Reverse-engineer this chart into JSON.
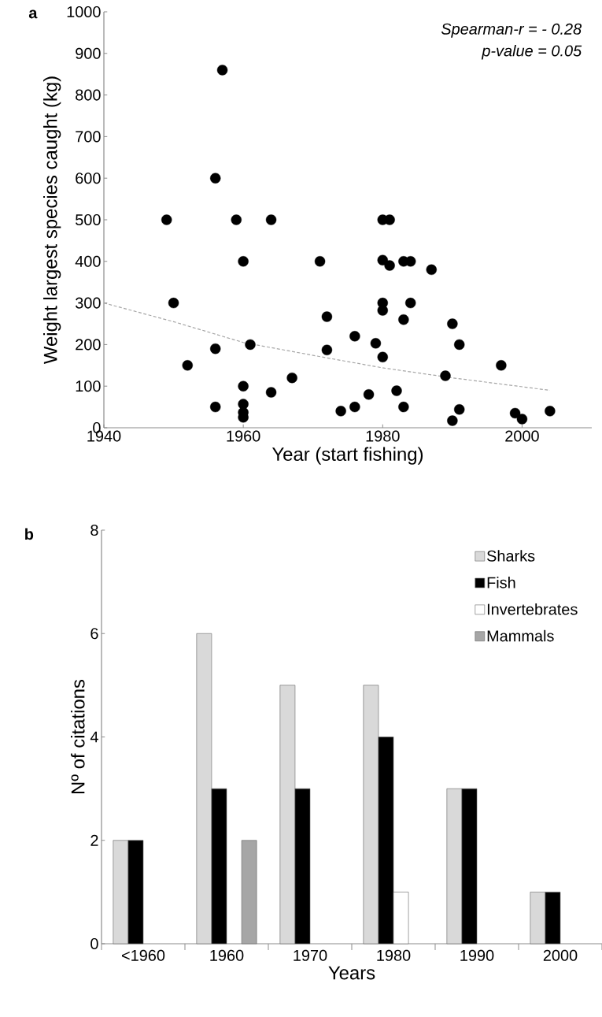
{
  "chart_data": [
    {
      "type": "scatter",
      "title": "a",
      "xlabel": "Year (start fishing)",
      "ylabel": "Weight largest species caught (kg)",
      "annotations": [
        "Spearman-r = - 0.28",
        "p-value = 0.05"
      ],
      "xlim": [
        1940,
        2010
      ],
      "xticks": [
        1940,
        1960,
        1980,
        2000
      ],
      "ylim": [
        0,
        1000
      ],
      "yticks": [
        0,
        100,
        200,
        300,
        400,
        500,
        600,
        700,
        800,
        900,
        1000
      ],
      "grid": false,
      "series": [
        {
          "type": "scatter",
          "color": "#000000",
          "marker": "circle",
          "x": [
            1949,
            1950,
            1952,
            1956,
            1956,
            1956,
            1957,
            1959,
            1960,
            1960,
            1960,
            1960,
            1960,
            1961,
            1964,
            1964,
            1967,
            1971,
            1972,
            1972,
            1974,
            1976,
            1976,
            1978,
            1979,
            1980,
            1980,
            1980,
            1980,
            1980,
            1981,
            1981,
            1982,
            1983,
            1983,
            1983,
            1984,
            1984,
            1987,
            1989,
            1990,
            1990,
            1991,
            1991,
            1997,
            1999,
            2000,
            2004
          ],
          "values": [
            500,
            300,
            150,
            600,
            190,
            50,
            860,
            500,
            400,
            100,
            57,
            37,
            25,
            200,
            500,
            85,
            120,
            400,
            267,
            187,
            40,
            220,
            50,
            80,
            203,
            500,
            403,
            300,
            282,
            170,
            500,
            390,
            89,
            400,
            260,
            50,
            400,
            300,
            380,
            125,
            250,
            17,
            200,
            44,
            150,
            35,
            21,
            40
          ]
        },
        {
          "type": "line",
          "color": "#a6a6a6",
          "line_style": "dashed",
          "marker": "none",
          "x": [
            1940,
            1950,
            1960,
            1972,
            1980,
            1990,
            2004
          ],
          "values": [
            300,
            255,
            205,
            168,
            144,
            120,
            90
          ]
        }
      ]
    },
    {
      "type": "bar",
      "title": "b",
      "xlabel": "Years",
      "ylabel": "Nº of  citations",
      "categories": [
        "<1960",
        "1960",
        "1970",
        "1980",
        "1990",
        "2000"
      ],
      "ylim": [
        0,
        8
      ],
      "yticks": [
        0,
        2,
        4,
        6,
        8
      ],
      "grid": false,
      "legend": "top right",
      "series": [
        {
          "name": "Sharks",
          "color": "#d9d9d9",
          "values": [
            2,
            6,
            5,
            5,
            3,
            1
          ]
        },
        {
          "name": "Fish",
          "color": "#000000",
          "values": [
            2,
            3,
            3,
            4,
            3,
            1
          ]
        },
        {
          "name": "Invertebrates",
          "color": "#ffffff",
          "values": [
            null,
            null,
            null,
            1,
            null,
            null
          ]
        },
        {
          "name": "Mammals",
          "color": "#a6a6a6",
          "values": [
            null,
            2,
            null,
            null,
            null,
            null
          ]
        }
      ]
    }
  ]
}
